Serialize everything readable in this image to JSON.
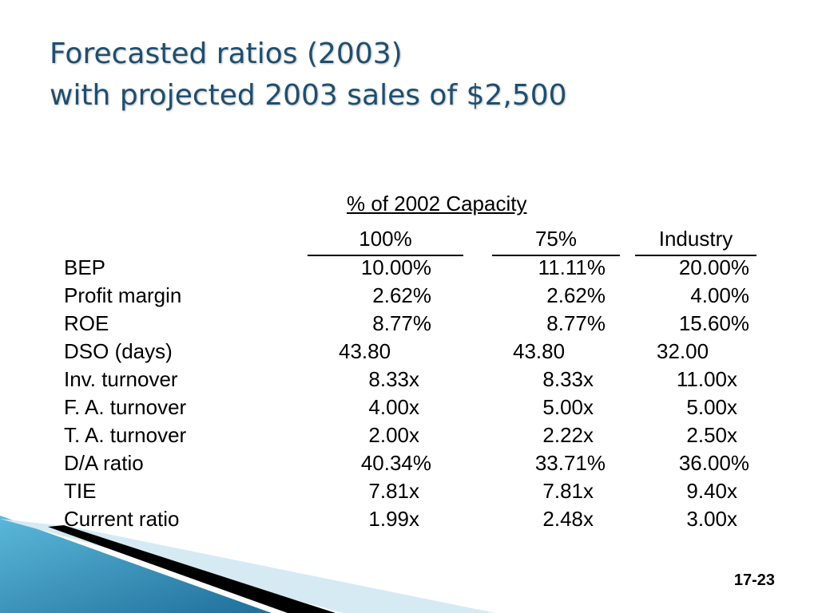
{
  "title": {
    "line1": "Forecasted ratios (2003)",
    "line2": "with projected 2003 sales of $2,500"
  },
  "table": {
    "group_header": "% of 2002 Capacity",
    "columns": [
      "100%",
      "75%",
      "Industry"
    ],
    "rows": [
      {
        "label": "BEP",
        "c1": "10.00%",
        "c2": "11.11%",
        "c3": "20.00%"
      },
      {
        "label": "Profit margin",
        "c1": "2.62%",
        "c2": "2.62%",
        "c3": "4.00%"
      },
      {
        "label": "ROE",
        "c1": "8.77%",
        "c2": "8.77%",
        "c3": "15.60%"
      },
      {
        "label": "DSO (days)",
        "c1": "43.80",
        "c2": "43.80",
        "c3": "32.00"
      },
      {
        "label": "Inv. turnover",
        "c1": "8.33x",
        "c2": "8.33x",
        "c3": "11.00x"
      },
      {
        "label": "F. A. turnover",
        "c1": "4.00x",
        "c2": "5.00x",
        "c3": "5.00x"
      },
      {
        "label": "T. A. turnover",
        "c1": "2.00x",
        "c2": "2.22x",
        "c3": "2.50x"
      },
      {
        "label": "D/A ratio",
        "c1": "40.34%",
        "c2": "33.71%",
        "c3": "36.00%"
      },
      {
        "label": "TIE",
        "c1": "7.81x",
        "c2": "7.81x",
        "c3": "9.40x"
      },
      {
        "label": "Current ratio",
        "c1": "1.99x",
        "c2": "2.48x",
        "c3": "3.00x"
      }
    ]
  },
  "page_number": "17-23",
  "colors": {
    "title": "#1f4e6e",
    "accent_blue": "#3a8fb8",
    "accent_light": "#cfe6f1"
  }
}
